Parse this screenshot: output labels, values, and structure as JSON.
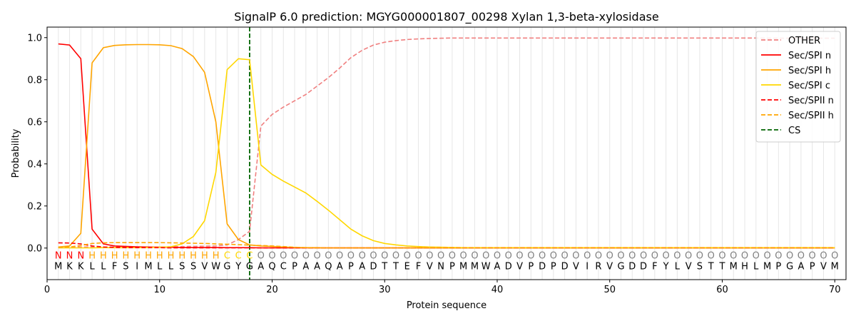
{
  "chart_data": {
    "type": "line",
    "title": "SignalP 6.0 prediction: MGYG000001807_00298 Xylan 1,3-beta-xylosidase",
    "xlabel": "Protein sequence",
    "ylabel": "Probability",
    "xlim": [
      0,
      71
    ],
    "ylim": [
      -0.15,
      1.05
    ],
    "xticks": [
      0,
      10,
      20,
      30,
      40,
      50,
      60,
      70
    ],
    "yticks": [
      0.0,
      0.2,
      0.4,
      0.6,
      0.8,
      1.0
    ],
    "ytick_labels": [
      "0.0",
      "0.2",
      "0.4",
      "0.6",
      "0.8",
      "1.0"
    ],
    "grid": "vertical lines at each residue",
    "legend_position": "top-right",
    "sequence": [
      "M",
      "K",
      "K",
      "L",
      "L",
      "F",
      "S",
      "I",
      "M",
      "L",
      "L",
      "S",
      "S",
      "V",
      "W",
      "G",
      "Y",
      "G",
      "A",
      "Q",
      "C",
      "P",
      "A",
      "A",
      "Q",
      "A",
      "P",
      "A",
      "D",
      "T",
      "T",
      "E",
      "F",
      "V",
      "N",
      "P",
      "M",
      "M",
      "W",
      "A",
      "D",
      "V",
      "P",
      "D",
      "P",
      "D",
      "V",
      "I",
      "R",
      "V",
      "G",
      "D",
      "D",
      "F",
      "Y",
      "L",
      "V",
      "S",
      "T",
      "T",
      "M",
      "H",
      "L",
      "M",
      "P",
      "G",
      "A",
      "P",
      "V",
      "M"
    ],
    "labels": [
      "N",
      "N",
      "N",
      "H",
      "H",
      "H",
      "H",
      "H",
      "H",
      "H",
      "H",
      "H",
      "H",
      "H",
      "H",
      "C",
      "C",
      "C",
      "O",
      "O",
      "O",
      "O",
      "O",
      "O",
      "O",
      "O",
      "O",
      "O",
      "O",
      "O",
      "O",
      "O",
      "O",
      "O",
      "O",
      "O",
      "O",
      "O",
      "O",
      "O",
      "O",
      "O",
      "O",
      "O",
      "O",
      "O",
      "O",
      "O",
      "O",
      "O",
      "O",
      "O",
      "O",
      "O",
      "O",
      "O",
      "O",
      "O",
      "O",
      "O",
      "O",
      "O",
      "O",
      "O",
      "O",
      "O",
      "O",
      "O",
      "O",
      "O"
    ],
    "label_colors": {
      "N": "#ff0000",
      "H": "#ffa500",
      "C": "#ffd700",
      "O": "#808080"
    },
    "cleavage_site": 18,
    "series": [
      {
        "name": "OTHER",
        "color": "#f08080",
        "dash": "dashed",
        "values": [
          0.005,
          0.005,
          0.005,
          0.005,
          0.005,
          0.005,
          0.005,
          0.005,
          0.005,
          0.005,
          0.006,
          0.007,
          0.008,
          0.009,
          0.01,
          0.015,
          0.04,
          0.08,
          0.58,
          0.635,
          0.67,
          0.7,
          0.73,
          0.77,
          0.81,
          0.855,
          0.905,
          0.94,
          0.965,
          0.978,
          0.986,
          0.991,
          0.994,
          0.996,
          0.997,
          0.998,
          0.998,
          0.998,
          0.998,
          0.998,
          0.998,
          0.998,
          0.998,
          0.998,
          0.998,
          0.998,
          0.998,
          0.998,
          0.998,
          0.998,
          0.998,
          0.998,
          0.998,
          0.998,
          0.998,
          0.998,
          0.998,
          0.998,
          0.998,
          0.998,
          0.998,
          0.998,
          0.998,
          0.997,
          0.997,
          0.997,
          0.997,
          0.997,
          0.997,
          0.997
        ]
      },
      {
        "name": "Sec/SPI n",
        "color": "#ff0000",
        "dash": "solid",
        "values": [
          0.97,
          0.965,
          0.9,
          0.09,
          0.02,
          0.01,
          0.008,
          0.006,
          0.005,
          0.004,
          0.004,
          0.003,
          0.003,
          0.003,
          0.003,
          0.002,
          0.002,
          0.002,
          0.001,
          0.001,
          0.001,
          0.001,
          0.001,
          0.001,
          0.001,
          0.001,
          0.001,
          0.001,
          0.001,
          0.001,
          0.001,
          0.001,
          0.001,
          0.001,
          0.001,
          0.001,
          0.001,
          0.001,
          0.001,
          0.001,
          0.001,
          0.001,
          0.001,
          0.001,
          0.001,
          0.001,
          0.001,
          0.001,
          0.001,
          0.001,
          0.001,
          0.001,
          0.001,
          0.001,
          0.001,
          0.001,
          0.001,
          0.001,
          0.001,
          0.001,
          0.001,
          0.001,
          0.001,
          0.001,
          0.001,
          0.001,
          0.001,
          0.001,
          0.001,
          0.001
        ]
      },
      {
        "name": "Sec/SPI h",
        "color": "#ffa500",
        "dash": "solid",
        "values": [
          0.005,
          0.01,
          0.07,
          0.88,
          0.952,
          0.963,
          0.966,
          0.967,
          0.967,
          0.966,
          0.962,
          0.948,
          0.91,
          0.835,
          0.6,
          0.115,
          0.04,
          0.015,
          0.01,
          0.008,
          0.005,
          0.003,
          0.002,
          0.002,
          0.001,
          0.001,
          0.001,
          0.001,
          0.001,
          0.001,
          0.001,
          0.001,
          0.001,
          0.001,
          0.001,
          0.001,
          0.001,
          0.001,
          0.001,
          0.001,
          0.001,
          0.001,
          0.001,
          0.001,
          0.001,
          0.001,
          0.001,
          0.001,
          0.001,
          0.001,
          0.001,
          0.001,
          0.001,
          0.001,
          0.001,
          0.001,
          0.001,
          0.001,
          0.001,
          0.001,
          0.001,
          0.001,
          0.001,
          0.001,
          0.001,
          0.001,
          0.001,
          0.001,
          0.001,
          0.001
        ]
      },
      {
        "name": "Sec/SPI c",
        "color": "#ffd700",
        "dash": "solid",
        "values": [
          0.001,
          0.001,
          0.001,
          0.001,
          0.002,
          0.002,
          0.002,
          0.002,
          0.003,
          0.004,
          0.006,
          0.02,
          0.055,
          0.13,
          0.36,
          0.848,
          0.9,
          0.895,
          0.395,
          0.35,
          0.318,
          0.29,
          0.262,
          0.222,
          0.18,
          0.135,
          0.09,
          0.058,
          0.035,
          0.022,
          0.015,
          0.01,
          0.007,
          0.005,
          0.004,
          0.003,
          0.002,
          0.002,
          0.002,
          0.002,
          0.002,
          0.002,
          0.002,
          0.002,
          0.002,
          0.002,
          0.002,
          0.002,
          0.002,
          0.002,
          0.002,
          0.002,
          0.002,
          0.002,
          0.002,
          0.002,
          0.002,
          0.002,
          0.002,
          0.002,
          0.002,
          0.002,
          0.002,
          0.002,
          0.002,
          0.002,
          0.002,
          0.002,
          0.002,
          0.002
        ]
      },
      {
        "name": "Sec/SPII n",
        "color": "#ff0000",
        "dash": "dashed",
        "values": [
          0.025,
          0.024,
          0.02,
          0.01,
          0.005,
          0.003,
          0.002,
          0.002,
          0.002,
          0.002,
          0.001,
          0.001,
          0.001,
          0.001,
          0.001,
          0.001,
          0.001,
          0.001,
          0.001,
          0.001,
          0.001,
          0.001,
          0.001,
          0.001,
          0.001,
          0.001,
          0.001,
          0.001,
          0.001,
          0.001,
          0.001,
          0.001,
          0.001,
          0.001,
          0.001,
          0.001,
          0.001,
          0.001,
          0.001,
          0.001,
          0.001,
          0.001,
          0.001,
          0.001,
          0.001,
          0.001,
          0.001,
          0.001,
          0.001,
          0.001,
          0.001,
          0.001,
          0.001,
          0.001,
          0.001,
          0.001,
          0.001,
          0.001,
          0.001,
          0.001,
          0.001,
          0.001,
          0.001,
          0.001,
          0.001,
          0.001,
          0.001,
          0.001,
          0.001,
          0.001
        ]
      },
      {
        "name": "Sec/SPII h",
        "color": "#ffa500",
        "dash": "dashed",
        "values": [
          0.003,
          0.005,
          0.012,
          0.022,
          0.025,
          0.026,
          0.026,
          0.026,
          0.026,
          0.026,
          0.025,
          0.024,
          0.023,
          0.022,
          0.02,
          0.018,
          0.016,
          0.014,
          0.012,
          0.01,
          0.007,
          0.004,
          0.002,
          0.001,
          0.001,
          0.001,
          0.001,
          0.001,
          0.001,
          0.001,
          0.001,
          0.001,
          0.001,
          0.001,
          0.001,
          0.001,
          0.001,
          0.001,
          0.001,
          0.001,
          0.001,
          0.001,
          0.001,
          0.001,
          0.001,
          0.001,
          0.001,
          0.001,
          0.001,
          0.001,
          0.001,
          0.001,
          0.001,
          0.001,
          0.001,
          0.001,
          0.001,
          0.001,
          0.001,
          0.001,
          0.001,
          0.001,
          0.001,
          0.001,
          0.001,
          0.001,
          0.001,
          0.001,
          0.001,
          0.001
        ]
      }
    ],
    "legend_entries": [
      {
        "name": "OTHER",
        "color": "#f08080",
        "dash": "dashed"
      },
      {
        "name": "Sec/SPI n",
        "color": "#ff0000",
        "dash": "solid"
      },
      {
        "name": "Sec/SPI h",
        "color": "#ffa500",
        "dash": "solid"
      },
      {
        "name": "Sec/SPI c",
        "color": "#ffd700",
        "dash": "solid"
      },
      {
        "name": "Sec/SPII n",
        "color": "#ff0000",
        "dash": "dashed"
      },
      {
        "name": "Sec/SPII h",
        "color": "#ffa500",
        "dash": "dashed"
      },
      {
        "name": "CS",
        "color": "#006400",
        "dash": "dashed"
      }
    ]
  }
}
